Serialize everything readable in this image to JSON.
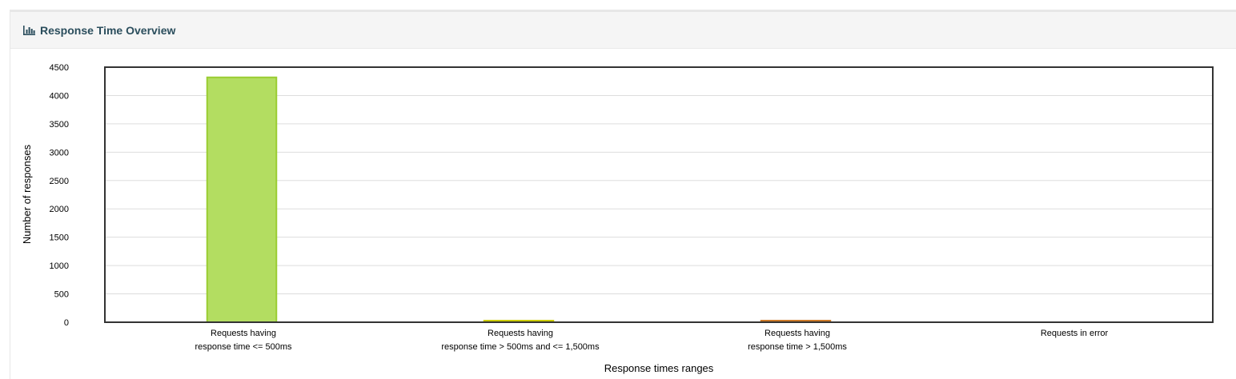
{
  "panel": {
    "title": "Response Time Overview",
    "icon": "bar-chart-icon"
  },
  "chart_data": {
    "type": "bar",
    "title": "",
    "xlabel": "Response times ranges",
    "ylabel": "Number of responses",
    "ylim": [
      0,
      4500
    ],
    "yticks": [
      0,
      500,
      1000,
      1500,
      2000,
      2500,
      3000,
      3500,
      4000,
      4500
    ],
    "grid": true,
    "legend": "none",
    "categories": [
      [
        "Requests having",
        "response time <= 500ms"
      ],
      [
        "Requests having",
        "response time > 500ms and <= 1,500ms"
      ],
      [
        "Requests having",
        "response time > 1,500ms"
      ],
      [
        "Requests in error"
      ]
    ],
    "values": [
      4320,
      10,
      25,
      0
    ],
    "colors": [
      {
        "fill": "#b3dd61",
        "stroke": "#9acd32"
      },
      {
        "fill": "#ffff33",
        "stroke": "#cccc00"
      },
      {
        "fill": "#ff9933",
        "stroke": "#cc7a29"
      },
      {
        "fill": "#ff6666",
        "stroke": "#cc5252"
      }
    ]
  }
}
